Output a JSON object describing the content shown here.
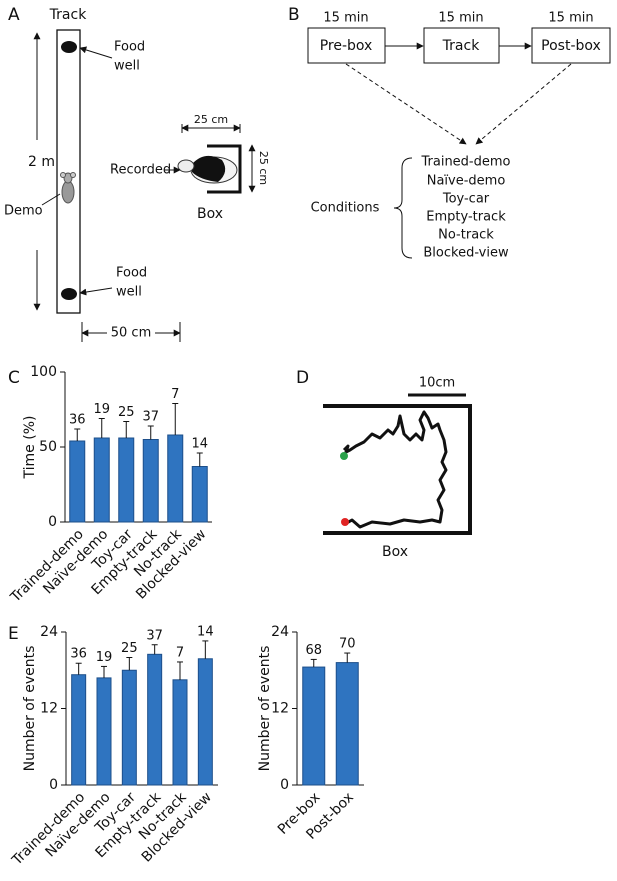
{
  "panel_a": {
    "label": "A",
    "track": "Track",
    "food_well_top": [
      "Food",
      "well"
    ],
    "food_well_bottom": [
      "Food",
      "well"
    ],
    "length": "2 m",
    "demo": "Demo",
    "recorded": "Recorded",
    "box_width": "25 cm",
    "box_depth": "25 cm",
    "box": "Box",
    "track_width": "50 cm"
  },
  "panel_b": {
    "label": "B",
    "durations": [
      "15 min",
      "15 min",
      "15 min"
    ],
    "stages": [
      "Pre-box",
      "Track",
      "Post-box"
    ],
    "conditions_title": "Conditions",
    "conditions": [
      "Trained-demo",
      "Naïve-demo",
      "Toy-car",
      "Empty-track",
      "No-track",
      "Blocked-view"
    ]
  },
  "panel_c": {
    "label": "C"
  },
  "panel_d": {
    "label": "D",
    "scale": "10cm",
    "box": "Box"
  },
  "panel_e": {
    "label": "E"
  },
  "chart_data": [
    {
      "type": "bar",
      "ylabel": "Time (%)",
      "categories": [
        "Trained-demo",
        "Naïve-demo",
        "Toy-car",
        "Empty-track",
        "No-track",
        "Blocked-view"
      ],
      "values": [
        54,
        56,
        56,
        55,
        58,
        37
      ],
      "errors": [
        8,
        13,
        11,
        9,
        21,
        9
      ],
      "annotations": [
        36,
        19,
        25,
        37,
        7,
        14
      ],
      "color": "#2f74c0",
      "ylim": [
        0,
        100
      ],
      "yticks": [
        0,
        50,
        100
      ]
    },
    {
      "type": "bar",
      "ylabel": "Number of events",
      "categories": [
        "Trained-demo",
        "Naïve-demo",
        "Toy-car",
        "Empty-track",
        "No-track",
        "Blocked-view"
      ],
      "values": [
        17.3,
        16.8,
        18,
        20.5,
        16.5,
        19.8
      ],
      "errors": [
        1.8,
        1.8,
        2,
        1.5,
        2.8,
        2.8
      ],
      "annotations": [
        36,
        19,
        25,
        37,
        7,
        14
      ],
      "color": "#2f74c0",
      "ylim": [
        0,
        24
      ],
      "yticks": [
        0,
        12,
        24
      ]
    },
    {
      "type": "bar",
      "ylabel": "Number of events",
      "categories": [
        "Pre-box",
        "Post-box"
      ],
      "values": [
        18.5,
        19.2
      ],
      "errors": [
        1.2,
        1.5
      ],
      "annotations": [
        68,
        70
      ],
      "color": "#2f74c0",
      "ylim": [
        0,
        24
      ],
      "yticks": [
        0,
        12,
        24
      ]
    }
  ]
}
